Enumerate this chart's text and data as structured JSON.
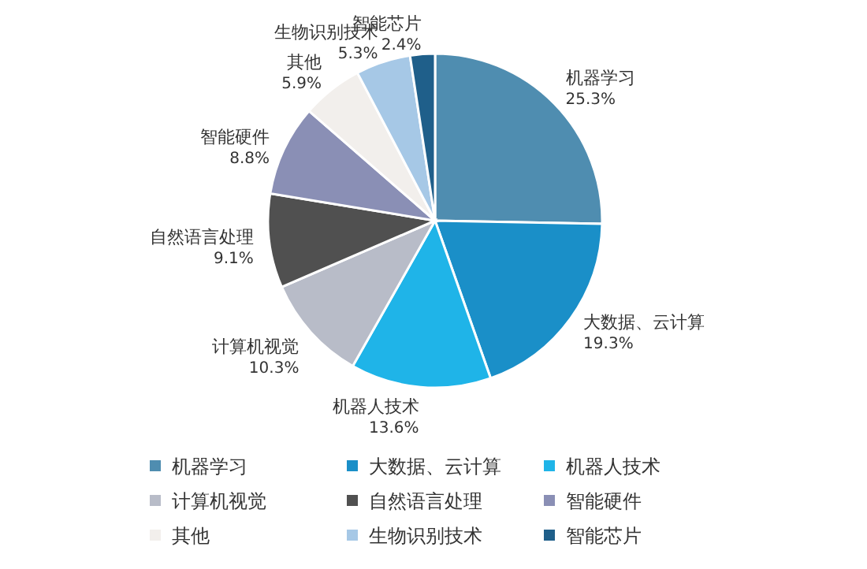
{
  "chart_data": {
    "type": "pie",
    "legend": "bottom",
    "categories": [
      "机器学习",
      "大数据、云计算",
      "机器人技术",
      "计算机视觉",
      "自然语言处理",
      "智能硬件",
      "其他",
      "生物识别技术",
      "智能芯片"
    ],
    "values": [
      25.3,
      19.3,
      13.6,
      10.3,
      9.1,
      8.8,
      5.9,
      5.3,
      2.4
    ],
    "value_labels": [
      "25.3%",
      "19.3%",
      "13.6%",
      "10.3%",
      "9.1%",
      "8.8%",
      "5.9%",
      "5.3%",
      "2.4%"
    ],
    "colors": [
      "#4f8db0",
      "#1a8fc8",
      "#1fb4e8",
      "#b8bcc8",
      "#505050",
      "#8a8fb5",
      "#f2efec",
      "#a6c8e6",
      "#1f5f8a"
    ]
  }
}
